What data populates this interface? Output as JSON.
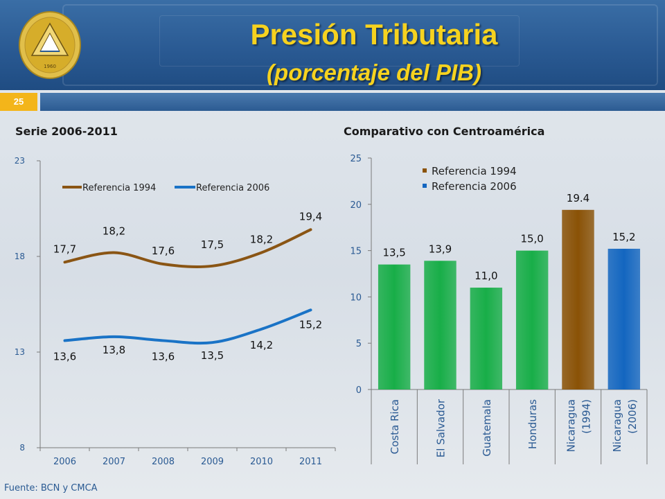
{
  "slide": {
    "title": "Presión Tributaria",
    "subtitle": "(porcentaje del PIB)",
    "number": "25",
    "seal_text": "1960",
    "source": "Fuente: BCN y CMCA"
  },
  "colors": {
    "header": "#2a5a93",
    "title": "#f6d21f",
    "slide_number_bg": "#f3b51a",
    "series_1994": "#8a5514",
    "series_2006": "#1a73c6",
    "bar_green": "#18ae48",
    "bar_1994": "#8a5206",
    "bar_2006": "#1366c0"
  },
  "chart_data": [
    {
      "type": "line",
      "title": "Serie 2006-2011",
      "x": [
        "2006",
        "2007",
        "2008",
        "2009",
        "2010",
        "2011"
      ],
      "ylim": [
        8,
        23
      ],
      "yticks": [
        8,
        13,
        18,
        23
      ],
      "grid": false,
      "legend": "top",
      "series": [
        {
          "name": "Referencia 1994",
          "values": [
            17.7,
            18.2,
            17.6,
            17.5,
            18.2,
            19.4
          ],
          "labels": [
            "17,7",
            "18,2",
            "17,6",
            "17,5",
            "18,2",
            "19,4"
          ],
          "color": "#8a5514"
        },
        {
          "name": "Referencia 2006",
          "values": [
            13.6,
            13.8,
            13.6,
            13.5,
            14.2,
            15.2
          ],
          "labels": [
            "13,6",
            "13,8",
            "13,6",
            "13,5",
            "14,2",
            "15,2"
          ],
          "color": "#1a73c6"
        }
      ]
    },
    {
      "type": "bar",
      "title": "Comparativo con Centroamérica",
      "categories": [
        "Costa Rica",
        "El Salvador",
        "Guatemala",
        "Honduras",
        "Nicaragua (1994)",
        "Nicaragua (2006)"
      ],
      "category_lines": [
        [
          "Costa Rica"
        ],
        [
          "El Salvador"
        ],
        [
          "Guatemala"
        ],
        [
          "Honduras"
        ],
        [
          "Nicaragua",
          "(1994)"
        ],
        [
          "Nicaragua",
          "(2006)"
        ]
      ],
      "values": [
        13.5,
        13.9,
        11.0,
        15.0,
        19.4,
        15.2
      ],
      "labels": [
        "13,5",
        "13,9",
        "11,0",
        "15,0",
        "19.4",
        "15,2"
      ],
      "bar_colors": [
        "#18ae48",
        "#18ae48",
        "#18ae48",
        "#18ae48",
        "#8a5206",
        "#1366c0"
      ],
      "ylim": [
        0,
        25
      ],
      "yticks": [
        0,
        5,
        10,
        15,
        20,
        25
      ],
      "grid": false,
      "legend": "top-left",
      "legend_entries": [
        {
          "name": "Referencia 1994",
          "color": "#8a5206"
        },
        {
          "name": "Referencia 2006",
          "color": "#1366c0"
        }
      ]
    }
  ]
}
